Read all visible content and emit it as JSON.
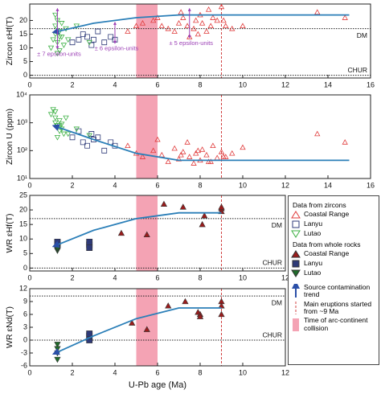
{
  "x_label": "U-Pb age (Ma)",
  "overlays": {
    "collision": [
      5,
      6
    ],
    "eruption": 9
  },
  "legend": {
    "zircon_heading": "Data from zircons",
    "wr_heading": "Data from whole rocks",
    "trend": "Source contamination trend",
    "eruption": "Main eruptions started from ~9 Ma",
    "collision": "Time of arc-continent collision"
  },
  "chart_data": [
    {
      "type": "scatter",
      "y_label": "Zircon εHf(T)",
      "xlim": [
        0,
        16
      ],
      "xticks": [
        0,
        2,
        4,
        6,
        8,
        10,
        12,
        14,
        16
      ],
      "ylim": [
        -1,
        26
      ],
      "yticks": [
        0,
        5,
        10,
        15,
        20
      ],
      "ref_lines": [
        {
          "label": "DM",
          "value": 17
        },
        {
          "label": "CHUR",
          "value": 0
        }
      ],
      "trend": {
        "x": [
          1.3,
          3,
          5,
          7,
          9,
          15
        ],
        "y": [
          16,
          19,
          21,
          22,
          22,
          22
        ]
      },
      "annotations": [
        {
          "text": "± 7 epsilon-units",
          "x": 1.3,
          "range": [
            10,
            24
          ]
        },
        {
          "text": "± 6 epsilon-units",
          "x": 4.0,
          "range": [
            12,
            19
          ]
        },
        {
          "text": "± 5 epsilon-units",
          "x": 7.5,
          "range": [
            14,
            24
          ]
        }
      ],
      "series": [
        {
          "name": "Coastal Range",
          "color": "#e03c3c",
          "marker": "triangle-up",
          "filled": false,
          "x": [
            4.6,
            5.0,
            5.3,
            5.8,
            6.2,
            6.5,
            6.8,
            7.0,
            7.2,
            7.4,
            7.5,
            7.7,
            7.8,
            8.0,
            8.1,
            8.3,
            8.5,
            8.6,
            8.8,
            9.0,
            9.2,
            9.5,
            6.0,
            7.1,
            7.9,
            8.4,
            9.1,
            10.0,
            13.5,
            14.8
          ],
          "values": [
            16,
            18,
            19,
            20,
            18,
            17,
            16,
            19,
            21,
            18,
            14,
            17,
            20,
            22,
            19,
            16,
            18,
            21,
            20,
            25,
            18,
            17,
            21,
            23,
            15,
            24,
            20,
            18,
            23,
            21
          ]
        },
        {
          "name": "Lanyu",
          "color": "#2e3a78",
          "marker": "square",
          "filled": false,
          "x": [
            2.0,
            2.3,
            2.5,
            2.7,
            2.9,
            3.0,
            3.2,
            3.5,
            3.8,
            4.0
          ],
          "values": [
            12,
            13,
            15,
            14,
            11,
            13,
            16,
            12,
            14,
            13
          ]
        },
        {
          "name": "Lutao",
          "color": "#3cb043",
          "marker": "triangle-down",
          "filled": false,
          "x": [
            1.0,
            1.1,
            1.2,
            1.2,
            1.3,
            1.3,
            1.4,
            1.4,
            1.5,
            1.5,
            1.6,
            1.7,
            1.3,
            1.2,
            1.4,
            1.8,
            2.2,
            2.8
          ],
          "values": [
            10,
            13,
            15,
            18,
            20,
            12,
            9,
            16,
            14,
            19,
            11,
            17,
            8,
            22,
            14,
            13,
            18,
            12
          ]
        }
      ]
    },
    {
      "type": "scatter",
      "y_label": "Zircon U (ppm)",
      "ylog": true,
      "xlim": [
        0,
        16
      ],
      "xticks": [
        0,
        2,
        4,
        6,
        8,
        10,
        12,
        14,
        16
      ],
      "ylim": [
        10,
        10000
      ],
      "yticks": [
        {
          "value": 10,
          "label": "10¹"
        },
        {
          "value": 100,
          "label": "10²"
        },
        {
          "value": 1000,
          "label": "10³"
        },
        {
          "value": 10000,
          "label": "10⁴"
        }
      ],
      "ref_lines": [],
      "trend": {
        "x": [
          1.3,
          3,
          5,
          7,
          9,
          15
        ],
        "y": [
          700,
          250,
          80,
          45,
          45,
          45
        ]
      },
      "series": [
        {
          "name": "Coastal Range",
          "color": "#e03c3c",
          "marker": "triangle-up",
          "filled": false,
          "x": [
            4.6,
            5.0,
            5.3,
            5.8,
            6.2,
            6.5,
            6.8,
            7.0,
            7.2,
            7.4,
            7.5,
            7.7,
            7.8,
            8.0,
            8.1,
            8.3,
            8.5,
            8.6,
            8.8,
            9.0,
            9.2,
            9.5,
            6.0,
            7.1,
            7.9,
            8.4,
            9.1,
            10.0,
            13.5,
            14.8
          ],
          "values": [
            150,
            80,
            60,
            100,
            70,
            40,
            120,
            50,
            90,
            200,
            60,
            35,
            80,
            45,
            110,
            70,
            40,
            150,
            55,
            90,
            60,
            80,
            250,
            70,
            100,
            40,
            60,
            130,
            400,
            200
          ]
        },
        {
          "name": "Lanyu",
          "color": "#2e3a78",
          "marker": "square",
          "filled": false,
          "x": [
            2.0,
            2.3,
            2.5,
            2.7,
            2.9,
            3.0,
            3.2,
            3.5,
            3.8,
            4.0
          ],
          "values": [
            300,
            500,
            200,
            150,
            400,
            250,
            300,
            100,
            200,
            150
          ]
        },
        {
          "name": "Lutao",
          "color": "#3cb043",
          "marker": "triangle-down",
          "filled": false,
          "x": [
            1.0,
            1.1,
            1.2,
            1.2,
            1.3,
            1.3,
            1.4,
            1.4,
            1.5,
            1.5,
            1.6,
            1.7,
            1.3,
            1.2,
            1.4,
            1.8,
            2.2,
            2.8
          ],
          "values": [
            2000,
            3000,
            1500,
            1000,
            800,
            700,
            500,
            1200,
            600,
            900,
            400,
            1500,
            300,
            2500,
            800,
            400,
            600,
            350
          ]
        }
      ]
    },
    {
      "type": "scatter",
      "y_label": "WR εHf(T)",
      "xlim": [
        0,
        12
      ],
      "xticks": [
        0,
        2,
        4,
        6,
        8,
        10,
        12
      ],
      "ylim": [
        -1,
        25
      ],
      "yticks": [
        0,
        5,
        10,
        15,
        20,
        25
      ],
      "ref_lines": [
        {
          "label": "DM",
          "value": 17
        },
        {
          "label": "CHUR",
          "value": 0
        }
      ],
      "trend": {
        "x": [
          1.3,
          3,
          5,
          7,
          9
        ],
        "y": [
          8,
          13,
          17,
          19,
          19
        ]
      },
      "series": [
        {
          "name": "Coastal Range",
          "color": "#9b1c1c",
          "marker": "triangle-up",
          "filled": true,
          "x": [
            4.3,
            5.5,
            6.3,
            7.2,
            8.1,
            8.2,
            9,
            9,
            9
          ],
          "values": [
            12,
            11.5,
            22,
            21,
            15,
            18,
            19.5,
            20.5,
            21
          ]
        },
        {
          "name": "Lanyu",
          "color": "#2e3a78",
          "marker": "square",
          "filled": true,
          "x": [
            1.3,
            1.3,
            2.8,
            2.8,
            2.8
          ],
          "values": [
            8,
            9,
            8,
            9,
            7
          ]
        },
        {
          "name": "Lutao",
          "color": "#1f6b2a",
          "marker": "triangle-down",
          "filled": true,
          "x": [
            1.3,
            1.3,
            1.3
          ],
          "values": [
            6,
            6.5,
            7
          ]
        }
      ]
    },
    {
      "type": "scatter",
      "y_label": "WR εNd(T)",
      "xlim": [
        0,
        12
      ],
      "xticks": [
        0,
        2,
        4,
        6,
        8,
        10,
        12
      ],
      "ylim": [
        -6,
        12
      ],
      "yticks": [
        -6,
        -3,
        0,
        3,
        6,
        9,
        12
      ],
      "ref_lines": [
        {
          "label": "DM",
          "value": 10.3
        },
        {
          "label": "CHUR",
          "value": 0
        }
      ],
      "trend": {
        "x": [
          1.3,
          3,
          5,
          7,
          9
        ],
        "y": [
          -2.8,
          1,
          5,
          7.5,
          7.5
        ]
      },
      "series": [
        {
          "name": "Coastal Range",
          "color": "#9b1c1c",
          "marker": "triangle-up",
          "filled": true,
          "x": [
            4.8,
            5.5,
            6.5,
            7.3,
            7.9,
            8,
            8,
            9,
            9,
            9
          ],
          "values": [
            4,
            2.5,
            8,
            9,
            6.5,
            6,
            5.5,
            9,
            8,
            6
          ]
        },
        {
          "name": "Lanyu",
          "color": "#2e3a78",
          "marker": "square",
          "filled": true,
          "x": [
            2.8,
            2.8,
            2.8
          ],
          "values": [
            0,
            1,
            1.5
          ]
        },
        {
          "name": "Lutao",
          "color": "#1f6b2a",
          "marker": "triangle-down",
          "filled": true,
          "x": [
            1.3,
            1.3,
            1.3,
            1.3
          ],
          "values": [
            -1,
            -3,
            -4.5,
            -2
          ]
        }
      ]
    }
  ]
}
